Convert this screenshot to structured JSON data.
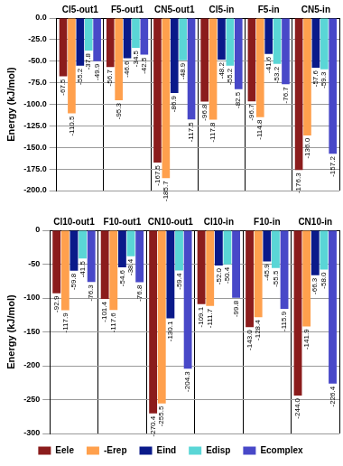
{
  "chart_data": [
    {
      "type": "bar",
      "y_label": "Energy (kJ/mol)",
      "categories": [
        "Cl5-out1",
        "F5-out1",
        "CN5-out1",
        "Cl5-in",
        "F5-in",
        "CN5-in"
      ],
      "series": [
        {
          "name": "Eele",
          "color": "#8b1c1c",
          "values": [
            -67.5,
            -56.7,
            -167.5,
            -96.8,
            -96.7,
            -176.3
          ],
          "value_labels": [
            "-67.5",
            "-56.7",
            "-167.5",
            "-96.8",
            "-96.7",
            "-176.3"
          ]
        },
        {
          "name": "-Erep",
          "color": "#ffa04d",
          "values": [
            -110.5,
            -95.3,
            -185.7,
            -117.8,
            -114.8,
            -136.0
          ],
          "value_labels": [
            "-110.5",
            "-95.3",
            "-185.7",
            "-117.8",
            "-114.8",
            "-136.0"
          ]
        },
        {
          "name": "Eind",
          "color": "#0a1a8a",
          "values": [
            -55.2,
            -46.6,
            -86.9,
            -48.2,
            -41.6,
            -57.6
          ],
          "value_labels": [
            "-55.2",
            "-46.6",
            "-86.9",
            "-48.2",
            "-41.6",
            "-57.6"
          ]
        },
        {
          "name": "Edisp",
          "color": "#5ad6d6",
          "values": [
            -37.8,
            -34.5,
            -48.9,
            -55.2,
            -53.2,
            -59.3
          ],
          "value_labels": [
            "-37.8",
            "-34.5",
            "-48.9",
            "-55.2",
            "-53.2",
            "-59.3"
          ]
        },
        {
          "name": "Ecomplex",
          "color": "#4848c8",
          "values": [
            -49.9,
            -42.5,
            -117.5,
            -82.5,
            -76.7,
            -157.2
          ],
          "value_labels": [
            "-49.9",
            "-42.5",
            "-117.5",
            "-82.5",
            "-76.7",
            "-157.2"
          ]
        }
      ],
      "ylim": [
        -200,
        0
      ],
      "yticks": [
        {
          "value": 0,
          "label": "0.0"
        },
        {
          "value": -25,
          "label": "-25.0"
        },
        {
          "value": -50,
          "label": "-50.0"
        },
        {
          "value": -75,
          "label": "-75.0"
        },
        {
          "value": -100,
          "label": "-100.0"
        },
        {
          "value": -125,
          "label": "-125.0"
        },
        {
          "value": -150,
          "label": "-150.0"
        },
        {
          "value": -175,
          "label": "-175.0"
        },
        {
          "value": -200,
          "label": "-200.0"
        }
      ],
      "grid": true,
      "data_labels": true
    },
    {
      "type": "bar",
      "y_label": "Energy (kJ/mol)",
      "categories": [
        "Cl10-out1",
        "F10-out1",
        "CN10-out1",
        "Cl10-in",
        "F10-in",
        "CN10-in"
      ],
      "series": [
        {
          "name": "Eele",
          "color": "#8b1c1c",
          "values": [
            -92.9,
            -101.4,
            -270.4,
            -109.1,
            -143.0,
            -244.0
          ],
          "value_labels": [
            "-92.9",
            "-101.4",
            "-270.4",
            "-109.1",
            "-143.0",
            "-244.0"
          ]
        },
        {
          "name": "-Erep",
          "color": "#ffa04d",
          "values": [
            -117.9,
            -117.6,
            -255.5,
            -111.7,
            -128.4,
            -141.9
          ],
          "value_labels": [
            "-117.9",
            "-117.6",
            "-255.5",
            "-111.7",
            "-128.4",
            "-141.9"
          ]
        },
        {
          "name": "Eind",
          "color": "#0a1a8a",
          "values": [
            -59.8,
            -54.6,
            -130.1,
            -52.0,
            -45.9,
            -66.3
          ],
          "value_labels": [
            "-59.8",
            "-54.6",
            "-130.1",
            "-52.0",
            "-45.9",
            "-66.3"
          ]
        },
        {
          "name": "Edisp",
          "color": "#5ad6d6",
          "values": [
            -41.5,
            -38.4,
            -59.4,
            -50.4,
            -55.5,
            -58.0
          ],
          "value_labels": [
            "-41.5",
            "-38.4",
            "-59.4",
            "-50.4",
            "-55.5",
            "-58.0"
          ]
        },
        {
          "name": "Ecomplex",
          "color": "#4848c8",
          "values": [
            -76.3,
            -76.8,
            -204.3,
            -99.8,
            -115.9,
            -226.4
          ],
          "value_labels": [
            "-76.3",
            "-76.8",
            "-204.3",
            "-99.8",
            "-115.9",
            "-226.4"
          ]
        }
      ],
      "ylim": [
        -300,
        0
      ],
      "yticks": [
        0,
        -50,
        -100,
        -150,
        -200,
        -250,
        -300
      ],
      "grid": true,
      "data_labels": true,
      "legend": "bottom"
    }
  ]
}
